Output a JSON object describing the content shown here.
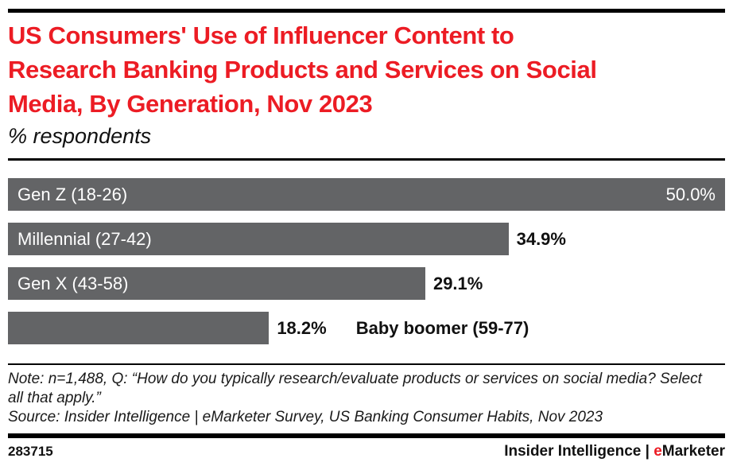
{
  "header": {
    "title_lines": [
      "US Consumers' Use of Influencer Content to",
      "Research Banking Products and Services on Social",
      "Media, By Generation, Nov 2023"
    ],
    "subtitle": "% respondents"
  },
  "chart_data": {
    "type": "bar",
    "orientation": "horizontal",
    "title": "US Consumers' Use of Influencer Content to Research Banking Products and Services on Social Media, By Generation, Nov 2023",
    "xlabel": "",
    "ylabel": "",
    "xlim": [
      0,
      50
    ],
    "grid": false,
    "legend": false,
    "categories": [
      "Gen Z (18-26)",
      "Millennial (27-42)",
      "Gen X (43-58)",
      "Baby boomer (59-77)"
    ],
    "values": [
      50.0,
      34.9,
      29.1,
      18.2
    ],
    "value_labels": [
      "50.0%",
      "34.9%",
      "29.1%",
      "18.2%"
    ],
    "unit": "% respondents",
    "bar_color": "#636466",
    "label_placement": [
      "inside",
      "inside",
      "inside",
      "outside"
    ],
    "value_placement": [
      "inside",
      "outside",
      "outside",
      "outside"
    ]
  },
  "notes": {
    "note": "Note: n=1,488, Q: “How do you typically research/evaluate products or services on social media? Select all that apply.”",
    "source": "Source: Insider Intelligence | eMarketer Survey, US Banking Consumer Habits, Nov 2023"
  },
  "footer": {
    "chart_id": "283715",
    "brand_primary": "Insider Intelligence",
    "brand_separator": " | ",
    "brand_e": "e",
    "brand_rest": "Marketer"
  },
  "colors": {
    "accent_red": "#ec1c24",
    "bar_gray": "#636466",
    "rule_black": "#000000",
    "text_dark": "#111111"
  }
}
